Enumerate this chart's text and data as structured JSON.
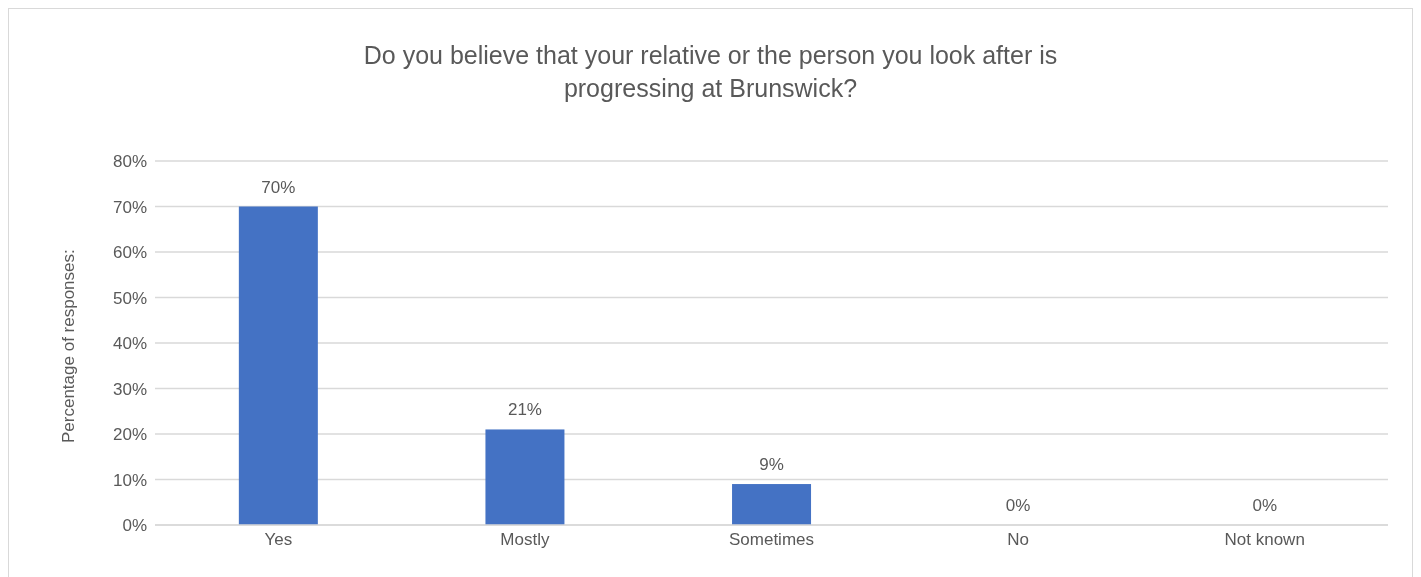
{
  "chart_data": {
    "type": "bar",
    "title": "Do you believe that your relative or the person you look after is progressing at Brunswick?",
    "ylabel": "Percentage of responses:",
    "categories": [
      "Yes",
      "Mostly",
      "Sometimes",
      "No",
      "Not known"
    ],
    "values": [
      70,
      21,
      9,
      0,
      0
    ],
    "color": "#4472c4",
    "value_labels": [
      "70%",
      "21%",
      "9%",
      "0%",
      "0%"
    ],
    "ylim": [
      0,
      80
    ],
    "yticks": [
      {
        "value": 0,
        "label": "0%"
      },
      {
        "value": 10,
        "label": "10%"
      },
      {
        "value": 20,
        "label": "20%"
      },
      {
        "value": 30,
        "label": "30%"
      },
      {
        "value": 40,
        "label": "40%"
      },
      {
        "value": 50,
        "label": "50%"
      },
      {
        "value": 60,
        "label": "60%"
      },
      {
        "value": 70,
        "label": "70%"
      },
      {
        "value": 80,
        "label": "80%"
      }
    ],
    "grid": "y"
  }
}
